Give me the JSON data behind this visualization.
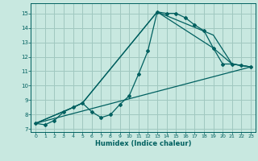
{
  "xlabel": "Humidex (Indice chaleur)",
  "xlim": [
    -0.5,
    23.5
  ],
  "ylim": [
    6.8,
    15.7
  ],
  "xticks": [
    0,
    1,
    2,
    3,
    4,
    5,
    6,
    7,
    8,
    9,
    10,
    11,
    12,
    13,
    14,
    15,
    16,
    17,
    18,
    19,
    20,
    21,
    22,
    23
  ],
  "yticks": [
    7,
    8,
    9,
    10,
    11,
    12,
    13,
    14,
    15
  ],
  "background_color": "#c8e8e0",
  "grid_color": "#a0c8c0",
  "line_color": "#006060",
  "line1_x": [
    0,
    1,
    2,
    3,
    4,
    5,
    6,
    7,
    8,
    9,
    10,
    11,
    12,
    13,
    14,
    15,
    16,
    17,
    18,
    19,
    20,
    21,
    22,
    23
  ],
  "line1_y": [
    7.4,
    7.3,
    7.6,
    8.2,
    8.5,
    8.8,
    8.2,
    7.8,
    8.0,
    8.7,
    9.3,
    10.8,
    12.4,
    15.1,
    15.0,
    15.0,
    14.7,
    14.2,
    13.8,
    12.6,
    11.5,
    11.5,
    11.4,
    11.3
  ],
  "line2_x": [
    0,
    4,
    5,
    13,
    19,
    21,
    22,
    23
  ],
  "line2_y": [
    7.4,
    8.5,
    8.8,
    15.1,
    12.6,
    11.5,
    11.4,
    11.3
  ],
  "line3_x": [
    0,
    4,
    5,
    13,
    19,
    21,
    22,
    23
  ],
  "line3_y": [
    7.4,
    8.5,
    8.8,
    15.1,
    13.5,
    11.5,
    11.4,
    11.3
  ],
  "line4_x": [
    0,
    23
  ],
  "line4_y": [
    7.4,
    11.3
  ]
}
